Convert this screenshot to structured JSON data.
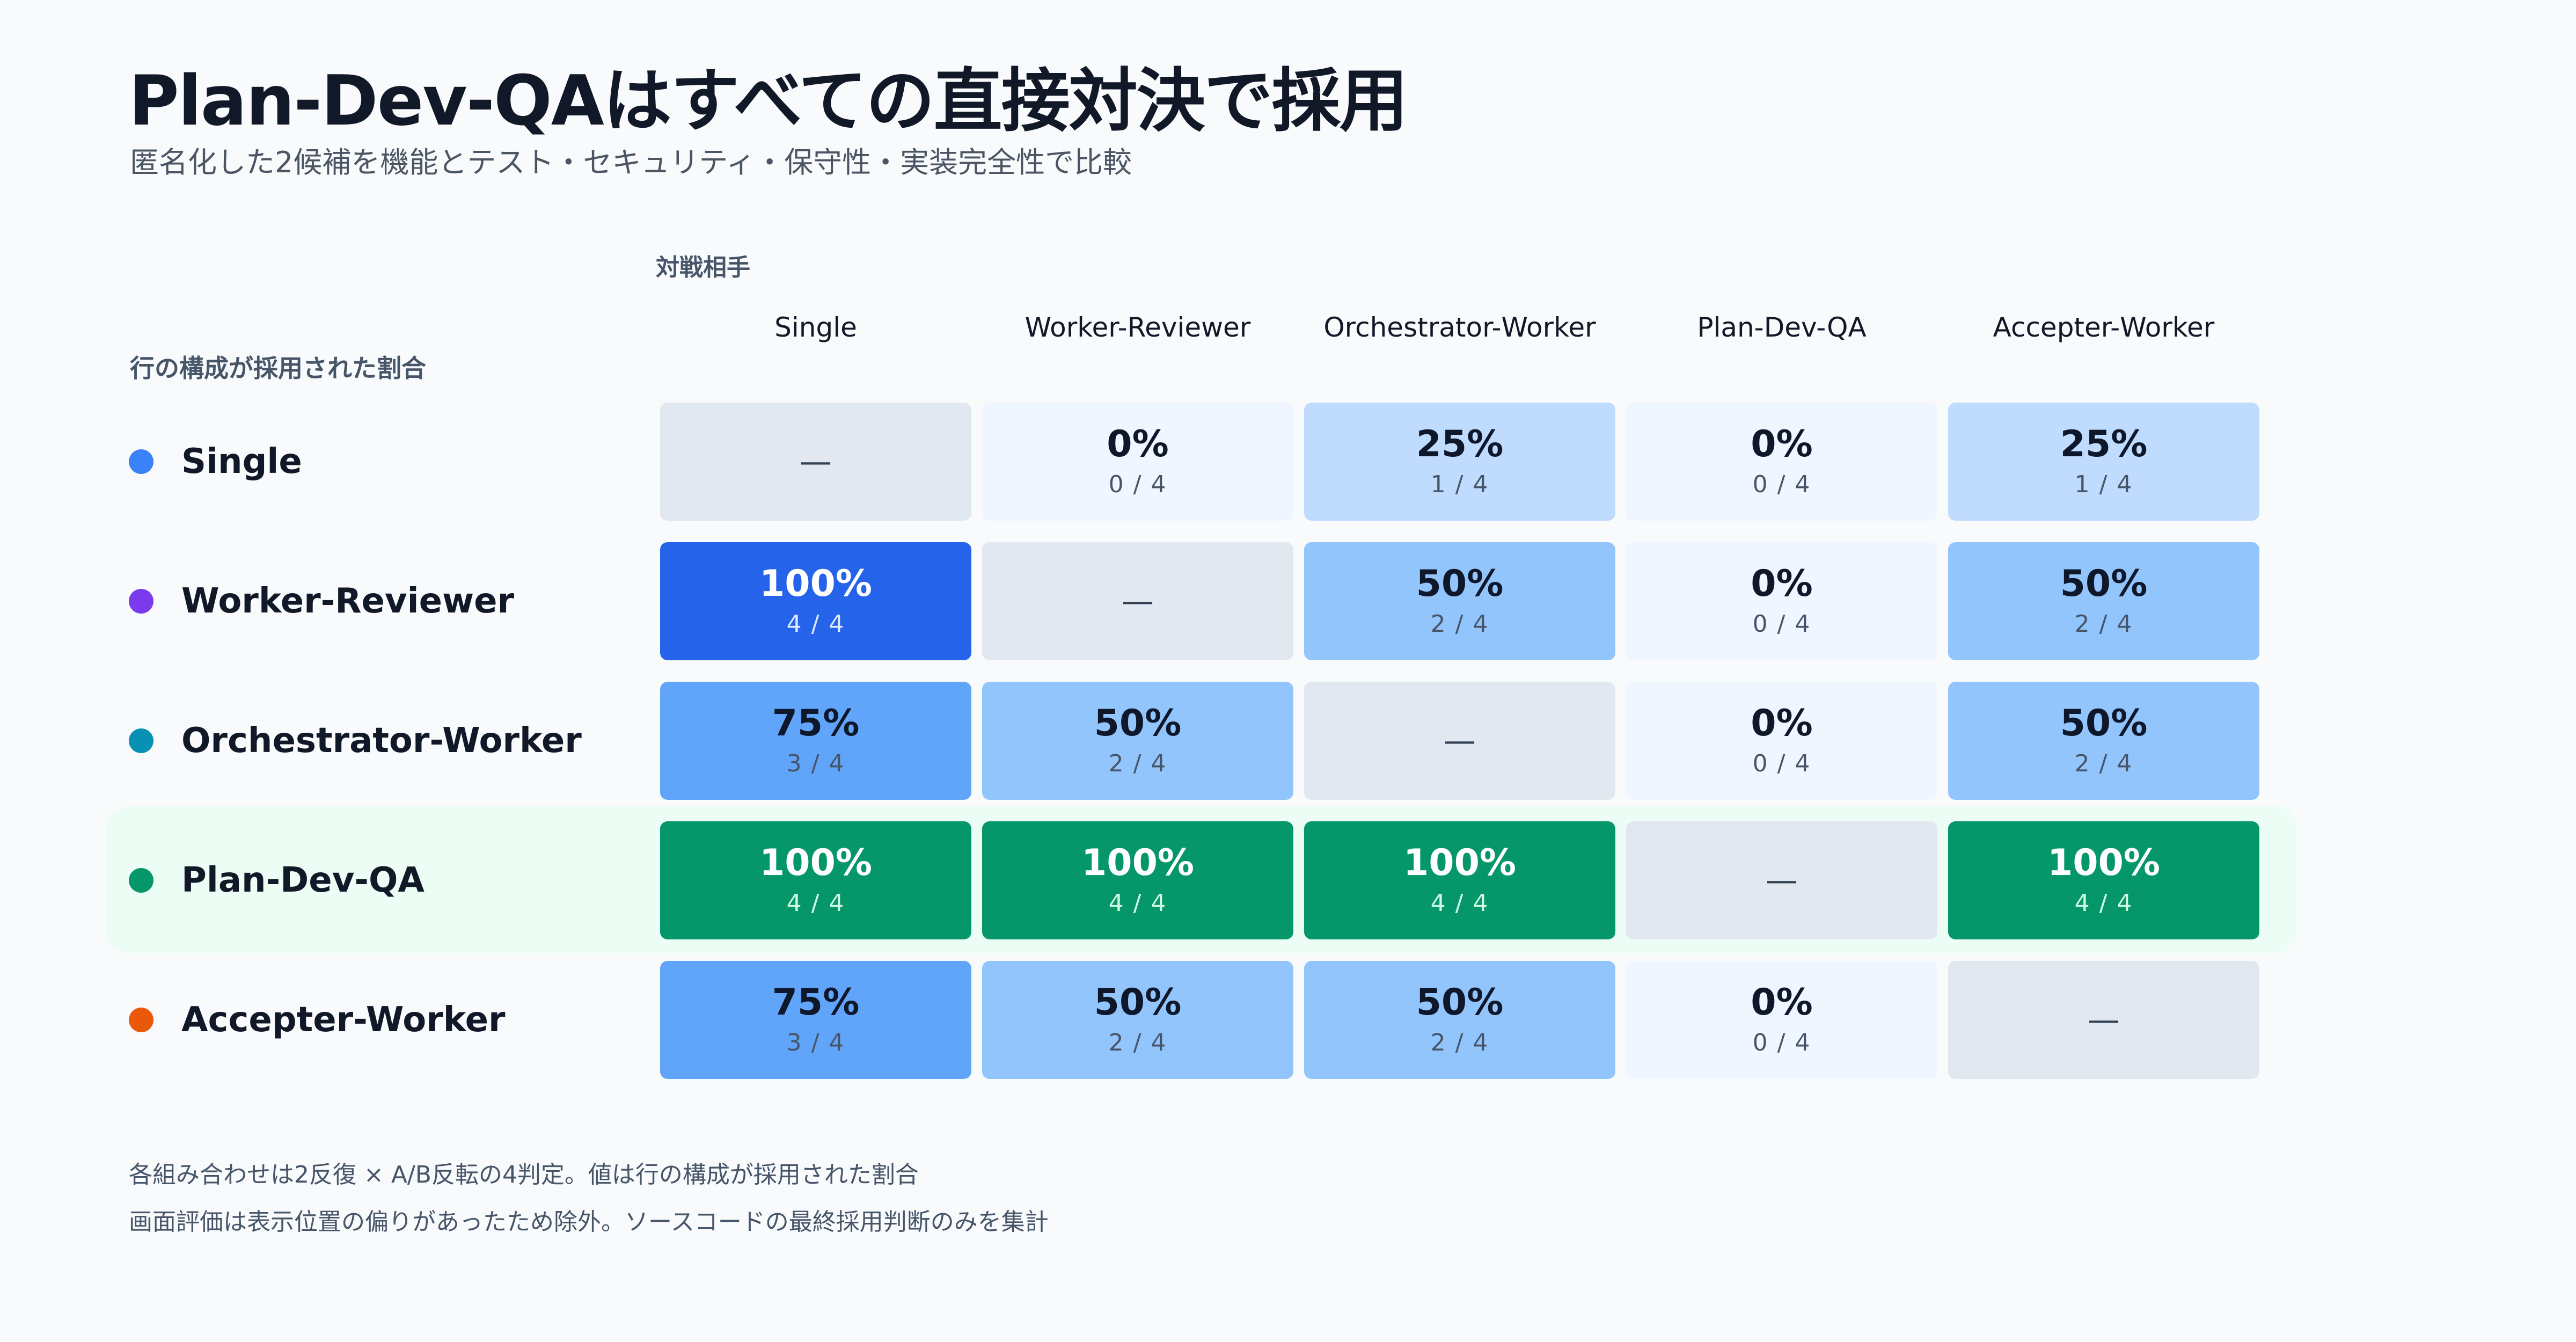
{
  "header": {
    "title": "Plan-Dev-QAはすべての直接対決で採用",
    "subtitle": "匿名化した2候補を機能とテスト・セキュリティ・保守性・実装完全性で比較"
  },
  "axes": {
    "col_label": "対戦相手",
    "row_label": "行の構成が採用された割合"
  },
  "columns": [
    {
      "line1": "Single",
      "line2": ""
    },
    {
      "line1": "Worker-",
      "line2": "Reviewer"
    },
    {
      "line1": "Orchestrator-",
      "line2": "Worker"
    },
    {
      "line1": "Plan-",
      "line2": "Dev-QA"
    },
    {
      "line1": "Accepter-",
      "line2": "Worker"
    }
  ],
  "rows": [
    {
      "name": "Single",
      "color": "#3b82f6"
    },
    {
      "name": "Worker-Reviewer",
      "color": "#7c3aed"
    },
    {
      "name": "Orchestrator-Worker",
      "color": "#0891b2"
    },
    {
      "name": "Plan-Dev-QA",
      "color": "#059669"
    },
    {
      "name": "Accepter-Worker",
      "color": "#ea580c"
    }
  ],
  "highlight_row": "Plan-Dev-QA",
  "notes": [
    "各組み合わせは2反復 × A/B反転の4判定。値は行の構成が採用された割合",
    "画面評価は表示位置の偏りがあったため除外。ソースコードの最終採用判断のみを集計"
  ],
  "colors": {
    "diagonal": "#e2e8f0",
    "winner_row": "#059669",
    "blue_100": "#2563eb",
    "blue_75": "#60a5fa",
    "blue_50": "#93c5fd",
    "blue_25": "#bfdbfe",
    "blue_0": "#eff6ff"
  },
  "chart_data": {
    "type": "heatmap",
    "title": "Plan-Dev-QAはすべての直接対決で採用",
    "xlabel": "対戦相手",
    "ylabel": "行の構成が採用された割合",
    "x": [
      "Single",
      "Worker-Reviewer",
      "Orchestrator-Worker",
      "Plan-Dev-QA",
      "Accepter-Worker"
    ],
    "y": [
      "Single",
      "Worker-Reviewer",
      "Orchestrator-Worker",
      "Plan-Dev-QA",
      "Accepter-Worker"
    ],
    "diagonal_label": "—",
    "values": [
      [
        null,
        0,
        25,
        0,
        25
      ],
      [
        100,
        null,
        50,
        0,
        50
      ],
      [
        75,
        50,
        null,
        0,
        50
      ],
      [
        100,
        100,
        100,
        null,
        100
      ],
      [
        75,
        50,
        50,
        0,
        null
      ]
    ],
    "wins": [
      [
        null,
        0,
        1,
        0,
        1
      ],
      [
        4,
        null,
        2,
        0,
        2
      ],
      [
        3,
        2,
        null,
        0,
        2
      ],
      [
        4,
        4,
        4,
        null,
        4
      ],
      [
        3,
        2,
        2,
        0,
        null
      ]
    ],
    "judgments_per_pair": 4
  }
}
